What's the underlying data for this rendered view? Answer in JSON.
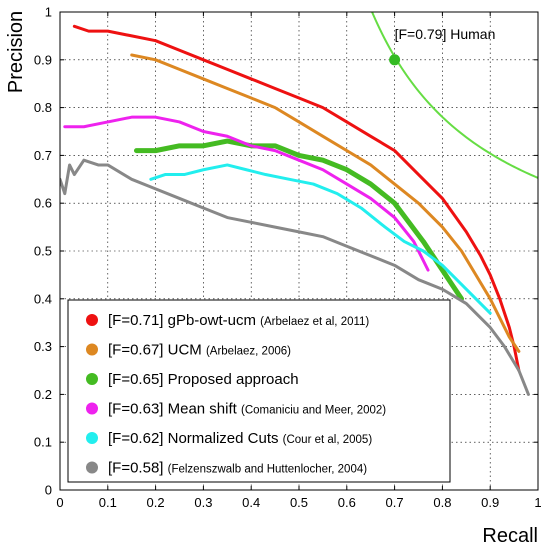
{
  "chart_data": {
    "type": "line",
    "xlabel": "Recall",
    "ylabel": "Precision",
    "xlim": [
      0,
      1
    ],
    "ylim": [
      0,
      1
    ],
    "x_ticks": [
      "0",
      "0.1",
      "0.2",
      "0.3",
      "0.4",
      "0.5",
      "0.6",
      "0.7",
      "0.8",
      "0.9",
      "1"
    ],
    "y_ticks": [
      "0",
      "0.1",
      "0.2",
      "0.3",
      "0.4",
      "0.5",
      "0.6",
      "0.7",
      "0.8",
      "0.9",
      "1"
    ],
    "grid": true,
    "legend_position": "bottom-left",
    "iso_f_curve": {
      "f": 0.79,
      "color": "#66dd44"
    },
    "human_point": {
      "label": "[F=0.79] Human",
      "recall": 0.7,
      "precision": 0.9,
      "color": "#33bb22"
    },
    "series": [
      {
        "name": "[F=0.71] gPb-owt-ucm",
        "citation": "(Arbelaez et al, 2011)",
        "color": "#ee1111",
        "points": [
          [
            0.03,
            0.97
          ],
          [
            0.06,
            0.96
          ],
          [
            0.1,
            0.96
          ],
          [
            0.15,
            0.95
          ],
          [
            0.2,
            0.94
          ],
          [
            0.25,
            0.92
          ],
          [
            0.3,
            0.9
          ],
          [
            0.35,
            0.88
          ],
          [
            0.4,
            0.86
          ],
          [
            0.45,
            0.84
          ],
          [
            0.5,
            0.82
          ],
          [
            0.55,
            0.8
          ],
          [
            0.6,
            0.77
          ],
          [
            0.65,
            0.74
          ],
          [
            0.7,
            0.71
          ],
          [
            0.75,
            0.66
          ],
          [
            0.8,
            0.61
          ],
          [
            0.85,
            0.54
          ],
          [
            0.88,
            0.49
          ],
          [
            0.9,
            0.45
          ],
          [
            0.92,
            0.4
          ],
          [
            0.94,
            0.34
          ],
          [
            0.95,
            0.3
          ],
          [
            0.96,
            0.25
          ]
        ]
      },
      {
        "name": "[F=0.67] UCM",
        "citation": "(Arbelaez, 2006)",
        "color": "#dd8822",
        "points": [
          [
            0.15,
            0.91
          ],
          [
            0.2,
            0.9
          ],
          [
            0.25,
            0.88
          ],
          [
            0.3,
            0.86
          ],
          [
            0.35,
            0.84
          ],
          [
            0.4,
            0.82
          ],
          [
            0.45,
            0.8
          ],
          [
            0.5,
            0.77
          ],
          [
            0.55,
            0.74
          ],
          [
            0.6,
            0.71
          ],
          [
            0.65,
            0.68
          ],
          [
            0.7,
            0.64
          ],
          [
            0.75,
            0.6
          ],
          [
            0.8,
            0.55
          ],
          [
            0.84,
            0.5
          ],
          [
            0.87,
            0.45
          ],
          [
            0.9,
            0.4
          ],
          [
            0.92,
            0.36
          ],
          [
            0.94,
            0.32
          ],
          [
            0.96,
            0.29
          ]
        ]
      },
      {
        "name": "[F=0.65] Proposed approach",
        "citation": "",
        "color": "#44bb22",
        "points": [
          [
            0.16,
            0.71
          ],
          [
            0.2,
            0.71
          ],
          [
            0.25,
            0.72
          ],
          [
            0.3,
            0.72
          ],
          [
            0.35,
            0.73
          ],
          [
            0.4,
            0.72
          ],
          [
            0.45,
            0.72
          ],
          [
            0.5,
            0.7
          ],
          [
            0.55,
            0.69
          ],
          [
            0.6,
            0.67
          ],
          [
            0.65,
            0.64
          ],
          [
            0.7,
            0.6
          ],
          [
            0.73,
            0.56
          ],
          [
            0.76,
            0.52
          ],
          [
            0.78,
            0.49
          ],
          [
            0.8,
            0.46
          ],
          [
            0.82,
            0.43
          ],
          [
            0.84,
            0.4
          ]
        ]
      },
      {
        "name": "[F=0.63] Mean shift",
        "citation": "(Comaniciu and Meer, 2002)",
        "color": "#ee22ee",
        "points": [
          [
            0.01,
            0.76
          ],
          [
            0.05,
            0.76
          ],
          [
            0.1,
            0.77
          ],
          [
            0.15,
            0.78
          ],
          [
            0.2,
            0.78
          ],
          [
            0.25,
            0.77
          ],
          [
            0.3,
            0.75
          ],
          [
            0.35,
            0.74
          ],
          [
            0.4,
            0.72
          ],
          [
            0.45,
            0.71
          ],
          [
            0.5,
            0.69
          ],
          [
            0.55,
            0.67
          ],
          [
            0.6,
            0.64
          ],
          [
            0.65,
            0.61
          ],
          [
            0.7,
            0.57
          ],
          [
            0.74,
            0.52
          ],
          [
            0.77,
            0.46
          ]
        ]
      },
      {
        "name": "[F=0.62] Normalized Cuts",
        "citation": "(Cour et al, 2005)",
        "color": "#22eeee",
        "points": [
          [
            0.19,
            0.65
          ],
          [
            0.22,
            0.66
          ],
          [
            0.26,
            0.66
          ],
          [
            0.3,
            0.67
          ],
          [
            0.35,
            0.68
          ],
          [
            0.39,
            0.67
          ],
          [
            0.43,
            0.66
          ],
          [
            0.48,
            0.65
          ],
          [
            0.53,
            0.64
          ],
          [
            0.58,
            0.62
          ],
          [
            0.63,
            0.59
          ],
          [
            0.68,
            0.55
          ],
          [
            0.72,
            0.52
          ],
          [
            0.76,
            0.5
          ],
          [
            0.8,
            0.47
          ],
          [
            0.84,
            0.43
          ],
          [
            0.87,
            0.4
          ],
          [
            0.9,
            0.37
          ]
        ]
      },
      {
        "name": "[F=0.58]",
        "citation": "(Felzenszwalb and Huttenlocher, 2004)",
        "color": "#888888",
        "points": [
          [
            0.0,
            0.65
          ],
          [
            0.01,
            0.62
          ],
          [
            0.02,
            0.68
          ],
          [
            0.03,
            0.66
          ],
          [
            0.05,
            0.69
          ],
          [
            0.08,
            0.68
          ],
          [
            0.1,
            0.68
          ],
          [
            0.15,
            0.65
          ],
          [
            0.2,
            0.63
          ],
          [
            0.25,
            0.61
          ],
          [
            0.3,
            0.59
          ],
          [
            0.35,
            0.57
          ],
          [
            0.4,
            0.56
          ],
          [
            0.45,
            0.55
          ],
          [
            0.5,
            0.54
          ],
          [
            0.55,
            0.53
          ],
          [
            0.6,
            0.51
          ],
          [
            0.65,
            0.49
          ],
          [
            0.7,
            0.47
          ],
          [
            0.75,
            0.44
          ],
          [
            0.8,
            0.42
          ],
          [
            0.85,
            0.39
          ],
          [
            0.9,
            0.34
          ],
          [
            0.93,
            0.3
          ],
          [
            0.96,
            0.25
          ],
          [
            0.98,
            0.2
          ]
        ]
      }
    ]
  }
}
